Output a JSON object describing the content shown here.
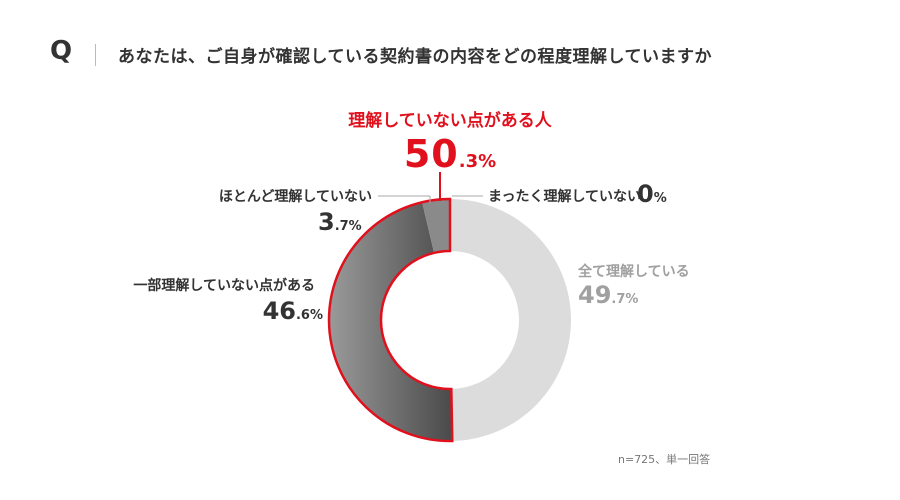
{
  "question": {
    "mark": "Q",
    "text": "あなたは、ご自身が確認している契約書の内容をどの程度理解していますか"
  },
  "highlight": {
    "label": "理解していない点がある人",
    "value_main": "50",
    "value_decimal": ".3%"
  },
  "labels": {
    "hotondo": {
      "name": "ほとんど理解していない",
      "value_main": "3",
      "value_decimal": ".7%"
    },
    "ichibu": {
      "name": "一部理解していない点がある",
      "value_main": "46",
      "value_decimal": ".6%"
    },
    "mattaku": {
      "name": "まったく理解していない",
      "value_main": "0",
      "value_decimal": "%"
    },
    "subete": {
      "name": "全て理解している",
      "value_main": "49",
      "value_decimal": ".7%"
    }
  },
  "note": "n=725、単一回答",
  "colors": {
    "accent_red": "#e0101d",
    "understood_grey": "#dcdcdc",
    "partial_dark": "#4a4a4a",
    "partial_light": "#9a9a9a",
    "mostly_not": "#8a8a8a",
    "leader_line": "#aaaaaa"
  },
  "chart_data": {
    "type": "pie",
    "donut": true,
    "start": "top",
    "direction": "clockwise",
    "categories": [
      "まったく理解していない",
      "全て理解している",
      "一部理解していない点がある",
      "ほとんど理解していない"
    ],
    "values": [
      0,
      49.7,
      46.6,
      3.7
    ],
    "highlight_group": {
      "label": "理解していない点がある人",
      "value": 50.3,
      "members": [
        "一部理解していない点がある",
        "ほとんど理解していない",
        "まったく理解していない"
      ]
    }
  }
}
